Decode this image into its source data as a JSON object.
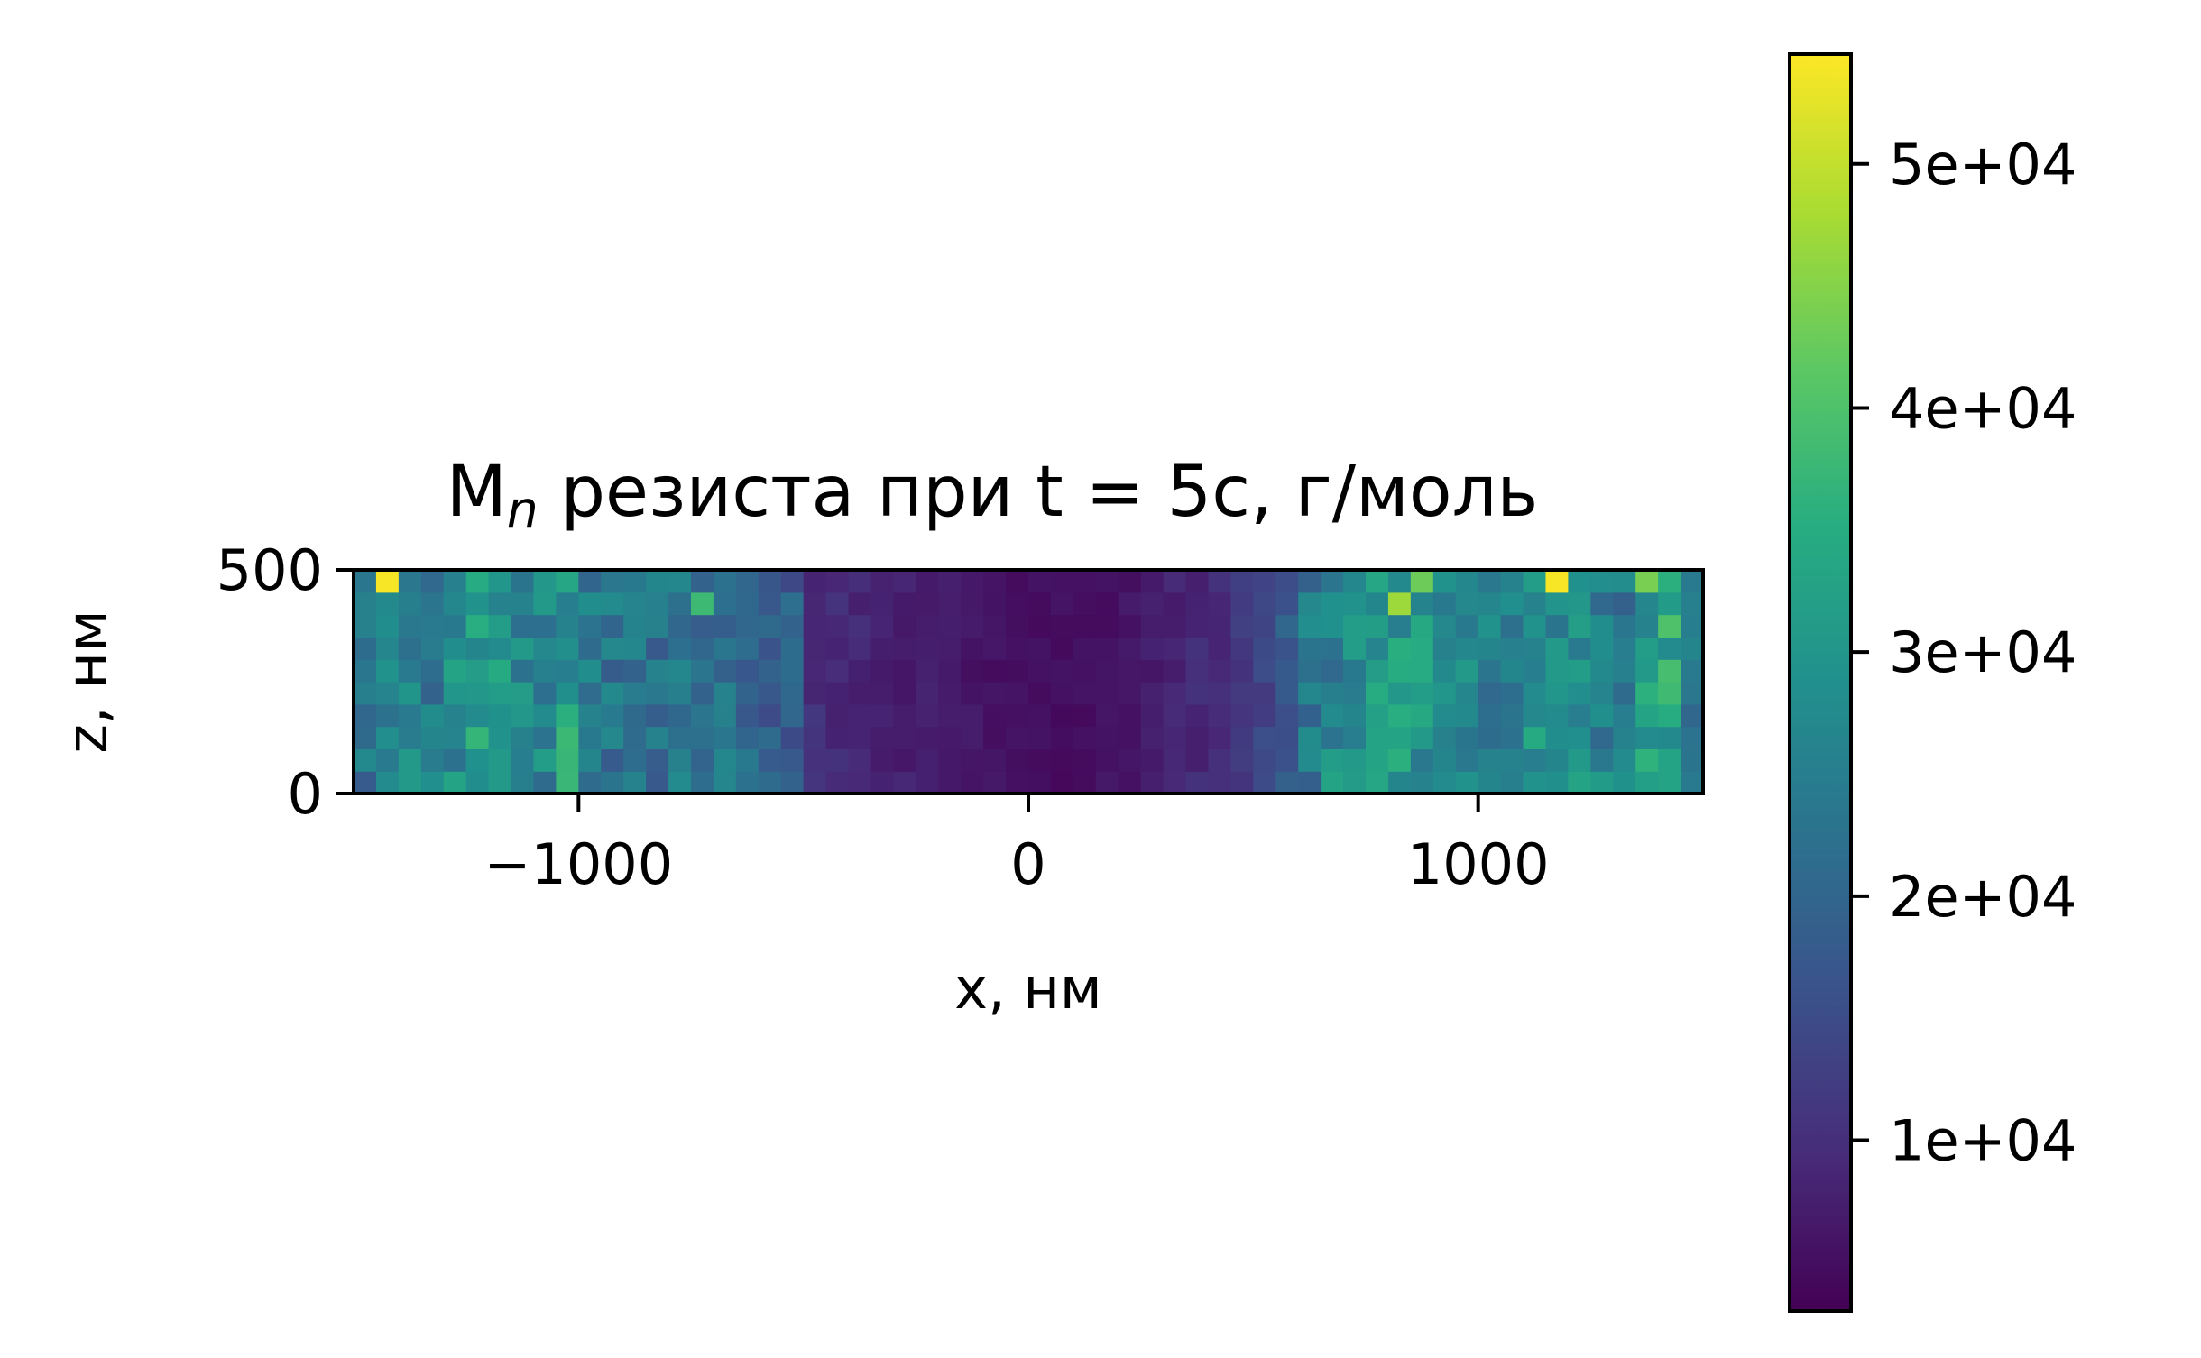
{
  "chart_data": {
    "type": "heatmap",
    "title": {
      "main": "M",
      "sub": "n",
      "rest": " резиста при t = 5с, г/моль"
    },
    "xlabel": "x, нм",
    "ylabel": "z, нм",
    "xlim": [
      -1500,
      1500
    ],
    "ylim": [
      0,
      500
    ],
    "x_ticks": [
      {
        "value": -1000,
        "label": "−1000"
      },
      {
        "value": 0,
        "label": "0"
      },
      {
        "value": 1000,
        "label": "1000"
      }
    ],
    "y_ticks": [
      {
        "value": 0,
        "label": "0"
      },
      {
        "value": 500,
        "label": "500"
      }
    ],
    "colorbar": {
      "colormap": "viridis",
      "range": [
        3000,
        54500
      ],
      "ticks": [
        {
          "value": 10000,
          "label": "1e+04"
        },
        {
          "value": 20000,
          "label": "2e+04"
        },
        {
          "value": 30000,
          "label": "3e+04"
        },
        {
          "value": 40000,
          "label": "4e+04"
        },
        {
          "value": 50000,
          "label": "5e+04"
        }
      ]
    },
    "grid": {
      "x_cells": 60,
      "z_cells": 10,
      "cell_width_nm": 50,
      "cell_height_nm": 50
    },
    "column_profile": [
      23000,
      52000,
      26000,
      24000,
      28000,
      30000,
      29000,
      27000,
      26000,
      32000,
      24000,
      23000,
      24000,
      22000,
      23000,
      21000,
      22000,
      20000,
      19000,
      18000,
      10000,
      9000,
      8500,
      8000,
      7500,
      7000,
      6500,
      6000,
      5500,
      5200,
      5000,
      5000,
      5200,
      5500,
      6000,
      7000,
      8000,
      9000,
      10000,
      11000,
      14000,
      19000,
      24000,
      26000,
      27000,
      29000,
      31000,
      30000,
      27000,
      26000,
      25000,
      27000,
      30000,
      51000,
      28000,
      26000,
      24000,
      30000,
      34000,
      25000
    ],
    "peak_cells": [
      {
        "ix": 1,
        "iz": 9,
        "value": 54000
      },
      {
        "ix": 46,
        "iz": 8,
        "value": 47000
      },
      {
        "ix": 47,
        "iz": 9,
        "value": 43000
      },
      {
        "ix": 53,
        "iz": 9,
        "value": 54000
      },
      {
        "ix": 57,
        "iz": 9,
        "value": 44000
      },
      {
        "ix": 58,
        "iz": 7,
        "value": 40000
      },
      {
        "ix": 15,
        "iz": 8,
        "value": 38000
      },
      {
        "ix": 5,
        "iz": 2,
        "value": 37000
      },
      {
        "ix": 43,
        "iz": 0,
        "value": 33000
      }
    ]
  }
}
